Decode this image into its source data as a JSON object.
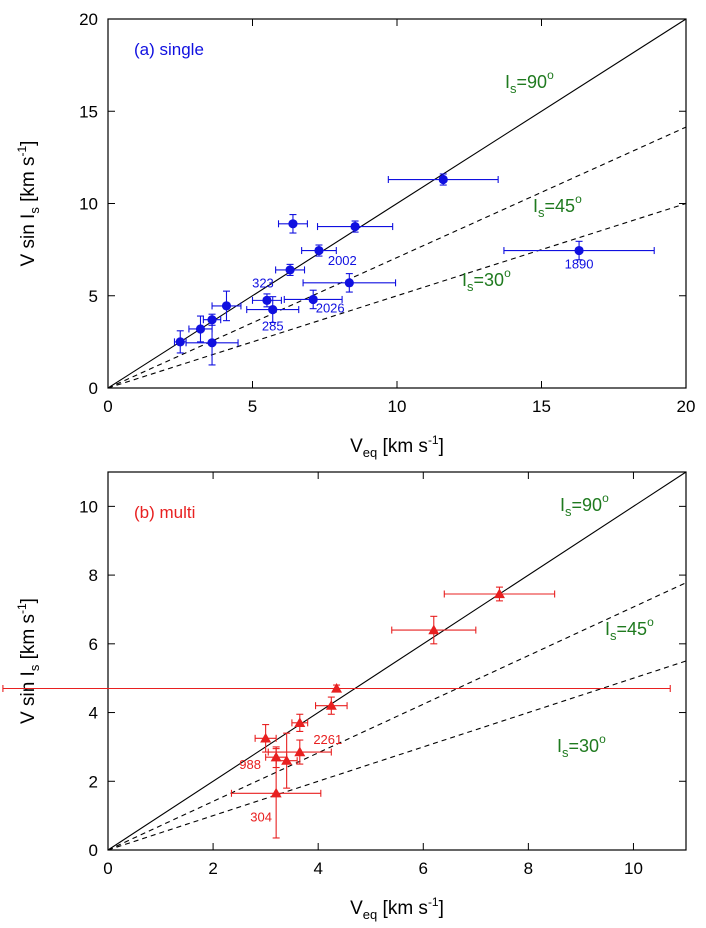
{
  "colors": {
    "single": "#1010e0",
    "multi": "#e82020",
    "annotation": "#1f7a1f",
    "axis": "#000000"
  },
  "chart_data": [
    {
      "type": "scatter",
      "panel_label": "(a) single",
      "xlabel": {
        "main": "V",
        "sub": "eq",
        "unit": " [km s",
        "exp": "-1",
        "close": "]"
      },
      "ylabel": {
        "main": "V sin I",
        "sub": "s",
        "unit": " [km s",
        "exp": "-1",
        "close": "]"
      },
      "xlim": [
        0,
        20
      ],
      "ylim": [
        0,
        20
      ],
      "xticks": [
        "0",
        "5",
        "10",
        "15",
        "20"
      ],
      "yticks": [
        "0",
        "5",
        "10",
        "15",
        "20"
      ],
      "xtick_values": [
        0,
        5,
        10,
        15,
        20
      ],
      "ytick_values": [
        0,
        5,
        10,
        15,
        20
      ],
      "marker": "circle",
      "lines": [
        {
          "slope": 1.0,
          "style": "solid",
          "label": {
            "main": "I",
            "sub": "s",
            "eq": "=90",
            "deg": "o"
          }
        },
        {
          "slope": 0.7071,
          "style": "dashed",
          "label": {
            "main": "I",
            "sub": "s",
            "eq": "=45",
            "deg": "o"
          }
        },
        {
          "slope": 0.5,
          "style": "dashed",
          "label": {
            "main": "I",
            "sub": "s",
            "eq": "=30",
            "deg": "o"
          }
        }
      ],
      "points": [
        {
          "x": 2.5,
          "y": 2.5,
          "xerr": 0.2,
          "yerr": 0.6
        },
        {
          "x": 3.2,
          "y": 3.2,
          "xerr": 0.4,
          "yerr": 0.7
        },
        {
          "x": 3.6,
          "y": 2.45,
          "xerr": 0.9,
          "yerr": 1.2
        },
        {
          "x": 3.6,
          "y": 3.7,
          "xerr": 0.3,
          "yerr": 0.3
        },
        {
          "x": 4.1,
          "y": 4.45,
          "xerr": 0.5,
          "yerr": 0.8
        },
        {
          "x": 5.5,
          "y": 4.75,
          "xerr": 0.5,
          "yerr": 0.35,
          "label": "323"
        },
        {
          "x": 5.7,
          "y": 4.25,
          "xerr": 0.9,
          "yerr": 0.7,
          "label": "285"
        },
        {
          "x": 6.3,
          "y": 6.4,
          "xerr": 0.5,
          "yerr": 0.3
        },
        {
          "x": 6.4,
          "y": 8.9,
          "xerr": 0.5,
          "yerr": 0.5
        },
        {
          "x": 7.1,
          "y": 4.8,
          "xerr": 1.0,
          "yerr": 0.5,
          "label": "2026"
        },
        {
          "x": 7.3,
          "y": 7.45,
          "xerr": 0.6,
          "yerr": 0.3
        },
        {
          "x": 8.35,
          "y": 5.7,
          "xerr": 1.6,
          "yerr": 0.5,
          "label": "2002"
        },
        {
          "x": 8.55,
          "y": 8.75,
          "xerr": 1.3,
          "yerr": 0.3
        },
        {
          "x": 11.6,
          "y": 11.3,
          "xerr": 1.9,
          "yerr": 0.3
        },
        {
          "x": 16.3,
          "y": 7.45,
          "xerr": 2.6,
          "yerr": 0.5,
          "label": "1890"
        }
      ]
    },
    {
      "type": "scatter",
      "panel_label": "(b) multi",
      "xlabel": {
        "main": "V",
        "sub": "eq",
        "unit": " [km s",
        "exp": "-1",
        "close": "]"
      },
      "ylabel": {
        "main": "V sin I",
        "sub": "s",
        "unit": " [km s",
        "exp": "-1",
        "close": "]"
      },
      "xlim": [
        0,
        11
      ],
      "ylim": [
        0,
        11
      ],
      "xticks": [
        "0",
        "2",
        "4",
        "6",
        "8",
        "10"
      ],
      "yticks": [
        "0",
        "2",
        "4",
        "6",
        "8",
        "10"
      ],
      "xtick_values": [
        0,
        2,
        4,
        6,
        8,
        10
      ],
      "ytick_values": [
        0,
        2,
        4,
        6,
        8,
        10
      ],
      "marker": "triangle",
      "lines": [
        {
          "slope": 1.0,
          "style": "solid",
          "label": {
            "main": "I",
            "sub": "s",
            "eq": "=90",
            "deg": "o"
          }
        },
        {
          "slope": 0.7071,
          "style": "dashed",
          "label": {
            "main": "I",
            "sub": "s",
            "eq": "=45",
            "deg": "o"
          }
        },
        {
          "slope": 0.5,
          "style": "dashed",
          "label": {
            "main": "I",
            "sub": "s",
            "eq": "=30",
            "deg": "o"
          }
        }
      ],
      "points": [
        {
          "x": 3.0,
          "y": 3.25,
          "xerr": 0.2,
          "yerr": 0.4
        },
        {
          "x": 3.2,
          "y": 2.7,
          "xerr": 0.2,
          "yerr": 0.3,
          "label": "988"
        },
        {
          "x": 3.2,
          "y": 1.65,
          "xerr": 0.85,
          "yerr": 1.3,
          "label": "304"
        },
        {
          "x": 3.4,
          "y": 2.6,
          "xerr": 0.2,
          "yerr": 0.8
        },
        {
          "x": 3.65,
          "y": 3.7,
          "xerr": 0.15,
          "yerr": 0.25
        },
        {
          "x": 3.65,
          "y": 2.85,
          "xerr": 0.6,
          "yerr": 0.35,
          "label": "2261"
        },
        {
          "x": 4.25,
          "y": 4.2,
          "xerr": 0.3,
          "yerr": 0.25
        },
        {
          "x": 4.35,
          "y": 4.7,
          "xerr": 6.35,
          "yerr": 0.1
        },
        {
          "x": 6.2,
          "y": 6.4,
          "xerr": 0.8,
          "yerr": 0.4
        },
        {
          "x": 7.45,
          "y": 7.45,
          "xerr": 1.05,
          "yerr": 0.2
        }
      ]
    }
  ]
}
